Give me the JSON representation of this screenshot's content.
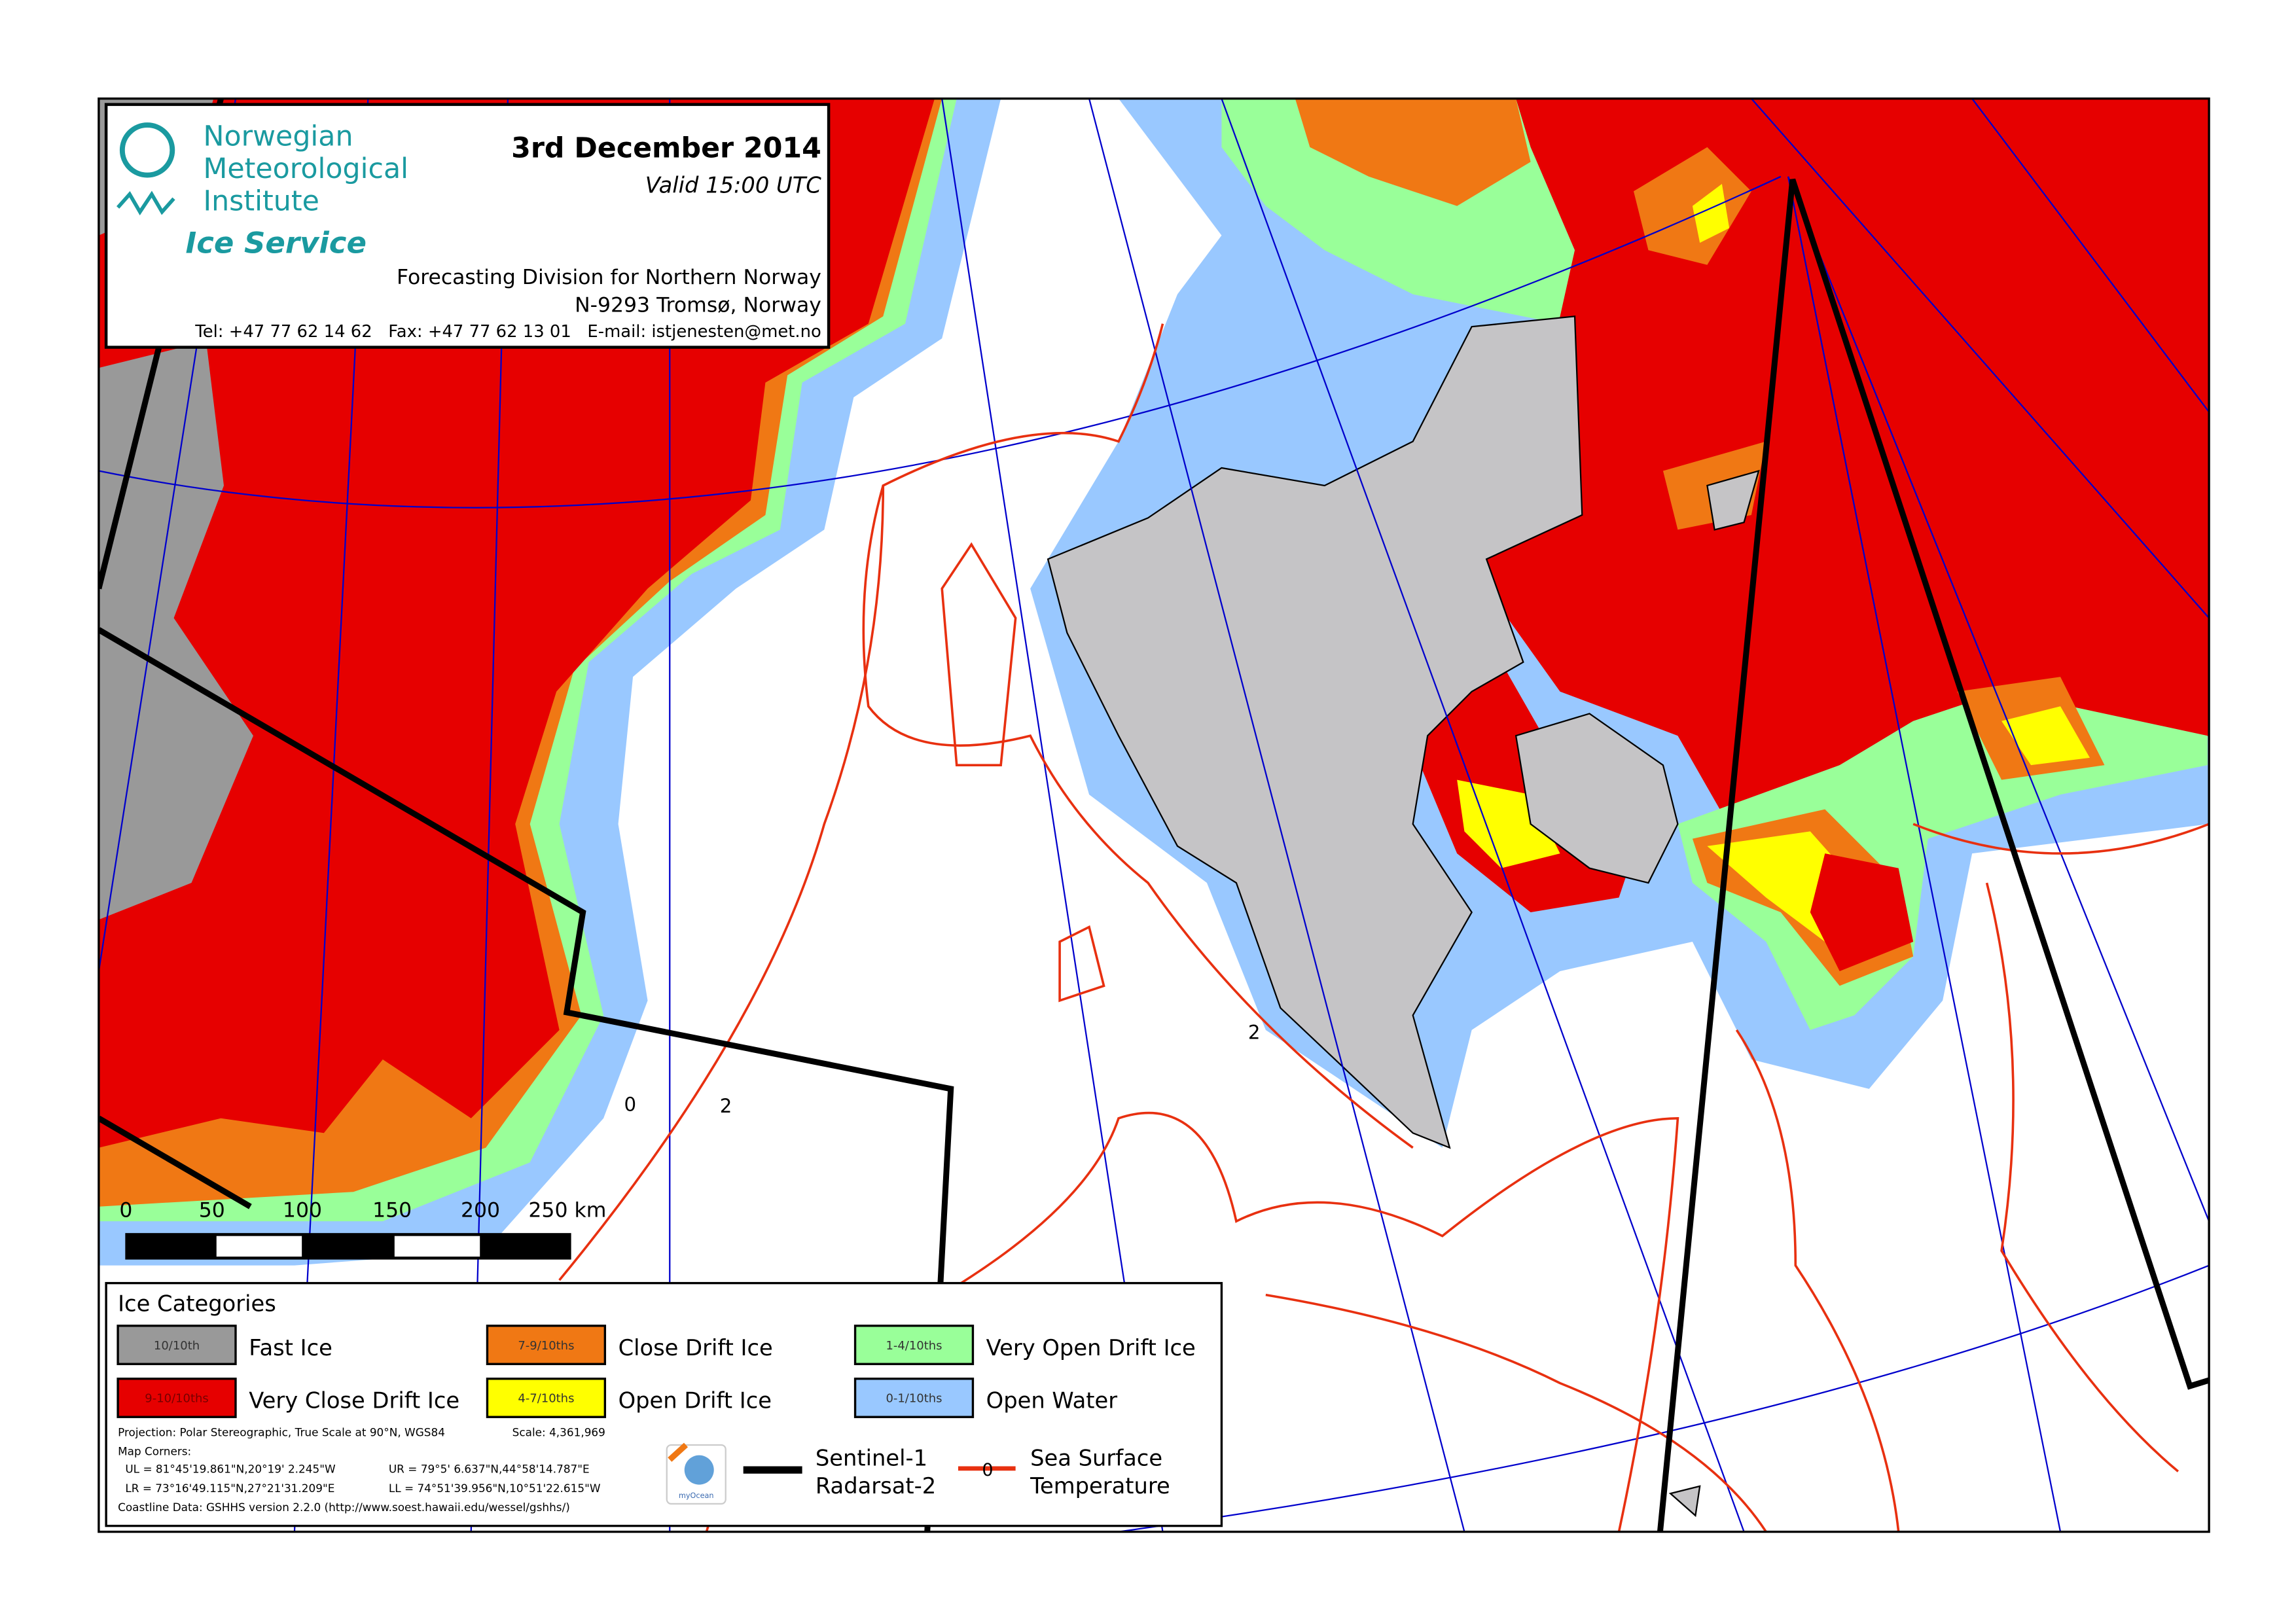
{
  "header": {
    "org_line1": "Norwegian",
    "org_line2": "Meteorological",
    "org_line3": "Institute",
    "service": "Ice Service",
    "date": "3rd December 2014",
    "valid": "Valid 15:00 UTC",
    "division": "Forecasting Division for Northern Norway",
    "address": "N-9293 Tromsø, Norway",
    "contact": "Tel: +47 77 62 14 62   Fax: +47 77 62 13 01   E-mail: istjenesten@met.no",
    "brand_color": "#1a9aa0"
  },
  "scale_bar": {
    "ticks": [
      "0",
      "50",
      "100",
      "150",
      "200",
      "250 km"
    ]
  },
  "map_labels": {
    "sst_labels": [
      "0",
      "2",
      "2"
    ]
  },
  "legend": {
    "title": "Ice Categories",
    "categories": [
      {
        "code": "10/10th",
        "label": "Fast Ice",
        "color": "#999999"
      },
      {
        "code": "7-9/10ths",
        "label": "Close Drift Ice",
        "color": "#f07814"
      },
      {
        "code": "1-4/10ths",
        "label": "Very Open Drift Ice",
        "color": "#99ff99"
      },
      {
        "code": "9-10/10ths",
        "label": "Very Close Drift Ice",
        "color": "#e60000"
      },
      {
        "code": "4-7/10ths",
        "label": "Open Drift Ice",
        "color": "#ffff00"
      },
      {
        "code": "0-1/10ths",
        "label": "Open Water",
        "color": "#99c8ff"
      }
    ],
    "projection": "Projection: Polar Stereographic, True Scale at 90°N, WGS84",
    "scale": "Scale: 4,361,969",
    "corners_title": "Map Corners:",
    "ul": "UL = 81°45'19.861\"N,20°19' 2.245\"W",
    "ur": "UR = 79°5' 6.637\"N,44°58'14.787\"E",
    "lr": "LR =  73°16'49.115\"N,27°21'31.209\"E",
    "ll": "LL = 74°51'39.956\"N,10°51'22.615\"W",
    "coastline": "Coastline Data: GSHHS version 2.2.0 (http://www.soest.hawaii.edu/wessel/gshhs/)",
    "logo_text": "myOcean",
    "sat_label1": "Sentinel-1",
    "sat_label2": "Radarsat-2",
    "sst_symbol": "0",
    "sst_label1": "Sea Surface",
    "sst_label2": "Temperature",
    "sst_color": "#e83010"
  }
}
